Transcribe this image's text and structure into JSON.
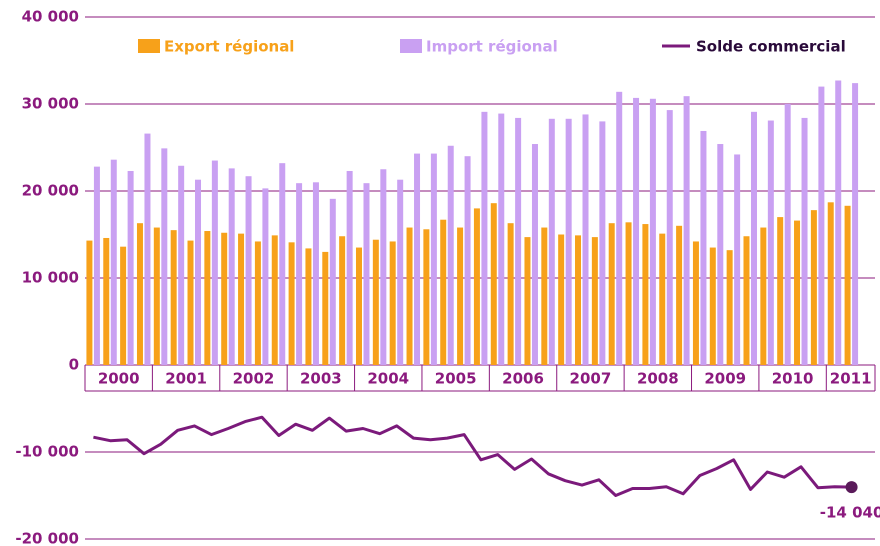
{
  "chart_data": {
    "type": "bar_line",
    "categories": [
      null,
      null,
      null,
      null,
      null,
      null,
      null,
      null,
      null,
      null,
      null,
      null,
      null,
      null,
      null,
      null,
      null,
      null,
      null,
      null,
      null,
      null,
      null,
      null,
      null,
      null,
      null,
      null,
      null,
      null,
      null,
      null,
      null,
      null,
      null,
      null,
      null,
      null,
      null,
      null,
      null,
      null,
      null,
      null,
      null,
      null
    ],
    "x_group_labels": [
      "2000",
      "2001",
      "2002",
      "2003",
      "2004",
      "2005",
      "2006",
      "2007",
      "2008",
      "2009",
      "2010",
      "2011"
    ],
    "ylim": [
      -20000,
      40000
    ],
    "yticks": [
      {
        "value": 40000,
        "label": "40 000"
      },
      {
        "value": 30000,
        "label": "30 000"
      },
      {
        "value": 20000,
        "label": "20 000"
      },
      {
        "value": 10000,
        "label": "10 000"
      },
      0,
      {
        "value": -10000,
        "label": "-10 000"
      },
      {
        "value": -20000,
        "label": "-20 000"
      }
    ],
    "grid": true,
    "series": [
      {
        "name": "Export régional",
        "color": "#f7a11a",
        "kind": "bar",
        "values": [
          14300,
          14600,
          13600,
          16300,
          15800,
          15500,
          14300,
          15400,
          15200,
          15100,
          14200,
          14900,
          14100,
          13400,
          13000,
          14800,
          13500,
          14400,
          14200,
          15800,
          15600,
          16700,
          15800,
          18000,
          18600,
          16300,
          14700,
          15800,
          15000,
          14900,
          14700,
          16300,
          16400,
          16200,
          15100,
          16000,
          14200,
          13500,
          13200,
          14800,
          15800,
          17000,
          16600,
          17800,
          18700,
          18300
        ]
      },
      {
        "name": "Import régional",
        "color": "#c9a0f2",
        "kind": "bar",
        "values": [
          22800,
          23600,
          22300,
          26600,
          24900,
          22900,
          21300,
          23500,
          22600,
          21700,
          20300,
          23200,
          20900,
          21000,
          19100,
          22300,
          20900,
          22500,
          21300,
          24300,
          24300,
          25200,
          24000,
          29100,
          28900,
          28400,
          25400,
          28300,
          28300,
          28800,
          28000,
          31400,
          30700,
          30600,
          29300,
          30900,
          26900,
          25400,
          24200,
          29100,
          28100,
          30000,
          28400,
          32000,
          32700,
          32400
        ]
      },
      {
        "name": "Solde commercial",
        "color": "#7b1a7b",
        "kind": "line",
        "values": [
          -8300,
          -8700,
          -8600,
          -10200,
          -9100,
          -7500,
          -7000,
          -8000,
          -7300,
          -6500,
          -6000,
          -8100,
          -6800,
          -7500,
          -6100,
          -7600,
          -7300,
          -7900,
          -7000,
          -8400,
          -8600,
          -8400,
          -8000,
          -10900,
          -10300,
          -12000,
          -10800,
          -12500,
          -13300,
          -13800,
          -13200,
          -15000,
          -14200,
          -14200,
          -14000,
          -14800,
          -12700,
          -11900,
          -10900,
          -14300,
          -12300,
          -12900,
          -11700,
          -14100,
          -14000,
          -14040
        ],
        "value_labels": [
          null,
          null,
          null,
          null,
          null,
          null,
          null,
          null,
          null,
          null,
          null,
          null,
          null,
          null,
          null,
          null,
          null,
          null,
          null,
          null,
          null,
          null,
          null,
          null,
          null,
          null,
          null,
          null,
          null,
          null,
          null,
          null,
          null,
          null,
          null,
          null,
          null,
          null,
          null,
          null,
          null,
          null,
          null,
          null,
          null,
          "-14 040"
        ]
      }
    ]
  }
}
